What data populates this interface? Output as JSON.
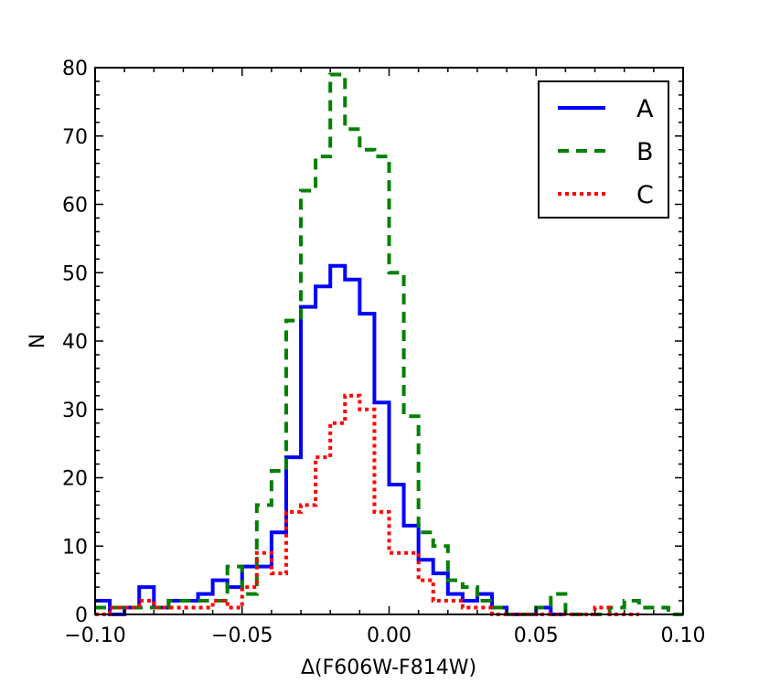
{
  "chart_data": {
    "type": "histogram-step",
    "title": "",
    "xlabel": "Δ(F606W-F814W)",
    "ylabel": "N",
    "xlim": [
      -0.1,
      0.1
    ],
    "ylim": [
      0,
      80
    ],
    "bin_width": 0.005,
    "xticks": [
      -0.1,
      -0.05,
      0.0,
      0.05,
      0.1
    ],
    "xtick_labels": [
      "−0.10",
      "−0.05",
      "0.00",
      "0.05",
      "0.10"
    ],
    "yticks": [
      0,
      10,
      20,
      30,
      40,
      50,
      60,
      70,
      80
    ],
    "ytick_labels": [
      "0",
      "10",
      "20",
      "30",
      "40",
      "50",
      "60",
      "70",
      "80"
    ],
    "legend_position": "top-right",
    "series": [
      {
        "name": "A",
        "color": "#0000ff",
        "style": "solid",
        "bins": [
          -0.1,
          -0.095,
          -0.09,
          -0.085,
          -0.08,
          -0.075,
          -0.07,
          -0.065,
          -0.06,
          -0.055,
          -0.05,
          -0.045,
          -0.04,
          -0.035,
          -0.03,
          -0.025,
          -0.02,
          -0.015,
          -0.01,
          -0.005,
          0.0,
          0.005,
          0.01,
          0.015,
          0.02,
          0.025,
          0.03,
          0.035,
          0.04,
          0.045,
          0.05,
          0.055,
          0.06
        ],
        "values": [
          2,
          0,
          1,
          4,
          1,
          2,
          2,
          3,
          5,
          4,
          7,
          7,
          12,
          23,
          45,
          48,
          51,
          49,
          44,
          31,
          19,
          13,
          8,
          6,
          3,
          2,
          3,
          1,
          0,
          0,
          1,
          0
        ]
      },
      {
        "name": "B",
        "color": "#008000",
        "style": "dashed",
        "bins": [
          -0.1,
          -0.095,
          -0.09,
          -0.085,
          -0.08,
          -0.075,
          -0.07,
          -0.065,
          -0.06,
          -0.055,
          -0.05,
          -0.045,
          -0.04,
          -0.035,
          -0.03,
          -0.025,
          -0.02,
          -0.015,
          -0.01,
          -0.005,
          0.0,
          0.005,
          0.01,
          0.015,
          0.02,
          0.025,
          0.03,
          0.035,
          0.04,
          0.045,
          0.05,
          0.055,
          0.06,
          0.065,
          0.07,
          0.075,
          0.08,
          0.085,
          0.09,
          0.095,
          0.1
        ],
        "values": [
          1,
          1,
          1,
          1,
          1,
          2,
          2,
          2,
          2,
          7,
          3,
          16,
          21,
          43,
          62,
          67,
          79,
          71,
          68,
          67,
          50,
          29,
          12,
          10,
          5,
          4,
          2,
          1,
          0,
          0,
          1,
          3,
          0,
          0,
          0,
          1,
          2,
          1,
          1,
          0
        ]
      },
      {
        "name": "C",
        "color": "#ff0000",
        "style": "dotted",
        "bins": [
          -0.1,
          -0.095,
          -0.09,
          -0.085,
          -0.08,
          -0.075,
          -0.07,
          -0.065,
          -0.06,
          -0.055,
          -0.05,
          -0.045,
          -0.04,
          -0.035,
          -0.03,
          -0.025,
          -0.02,
          -0.015,
          -0.01,
          -0.005,
          0.0,
          0.005,
          0.01,
          0.015,
          0.02,
          0.025,
          0.03,
          0.035,
          0.04,
          0.045,
          0.05,
          0.055,
          0.06,
          0.065,
          0.07,
          0.075,
          0.08,
          0.085
        ],
        "values": [
          0,
          1,
          1,
          2,
          1,
          1,
          1,
          1,
          2,
          1,
          4,
          9,
          6,
          15,
          16,
          23,
          28,
          32,
          30,
          15,
          9,
          9,
          5,
          2,
          2,
          1,
          1,
          0,
          0,
          0,
          0,
          0,
          0,
          0,
          1,
          0,
          0
        ]
      }
    ]
  }
}
